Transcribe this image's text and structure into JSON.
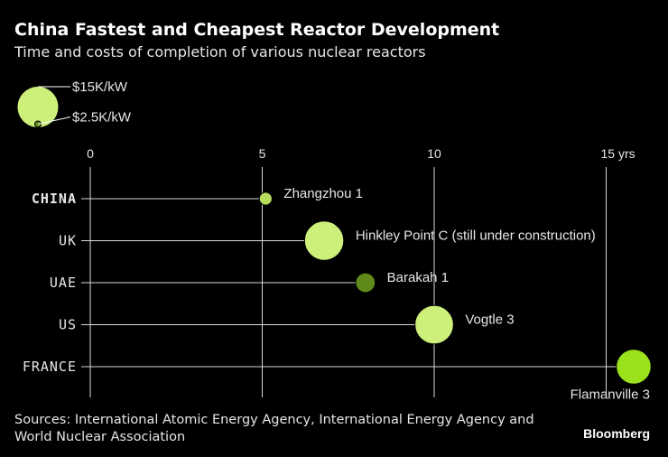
{
  "title": "China Fastest and Cheapest Reactor Development",
  "subtitle": "Time and costs of completion of various nuclear reactors",
  "source": "Sources: International Atomic Energy Agency, International Energy Agency and World Nuclear Association",
  "brand": "Bloomberg",
  "chart_data": {
    "type": "scatter",
    "xlim": [
      0,
      15.7
    ],
    "x_ticks": [
      0,
      5,
      10,
      15
    ],
    "x_tick_labels": [
      "0",
      "5",
      "10",
      "15 yrs"
    ],
    "grid": true,
    "legend_placement": "top-left",
    "size_legend": [
      {
        "label": "$15K/kW",
        "value": 15
      },
      {
        "label": "$2.5K/kW",
        "value": 2.5
      }
    ],
    "rows": [
      {
        "category": "CHINA",
        "bold": true,
        "name": "Zhangzhou 1",
        "years": 5.1,
        "cost_k_per_kw": 1.5,
        "color": "#b8dc5c",
        "label_side": "right"
      },
      {
        "category": "UK",
        "bold": false,
        "name": "Hinkley Point C (still under construction)",
        "years": 6.8,
        "cost_k_per_kw": 14.0,
        "color": "#ccf07a",
        "label_side": "right"
      },
      {
        "category": "UAE",
        "bold": false,
        "name": "Barakah 1",
        "years": 8.0,
        "cost_k_per_kw": 3.5,
        "color": "#5f8a1a",
        "label_side": "right"
      },
      {
        "category": "US",
        "bold": false,
        "name": "Vogtle 3",
        "years": 10.0,
        "cost_k_per_kw": 13.5,
        "color": "#ccf07a",
        "label_side": "right"
      },
      {
        "category": "FRANCE",
        "bold": false,
        "name": "Flamanville 3",
        "years": 15.8,
        "cost_k_per_kw": 11.0,
        "color": "#9be21c",
        "label_side": "below"
      }
    ]
  }
}
